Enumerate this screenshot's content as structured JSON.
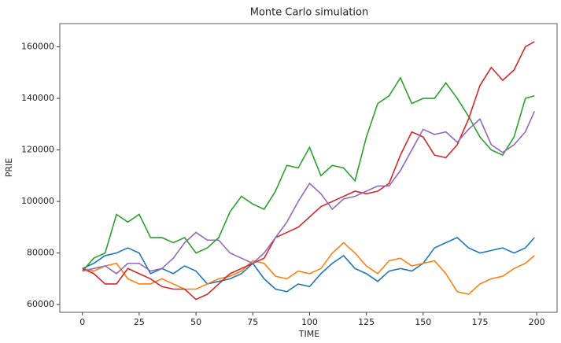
{
  "chart_data": {
    "type": "line",
    "title": "Monte Carlo simulation",
    "x_label": "TIME",
    "y_label": "PRIE",
    "x": [
      0,
      5,
      10,
      15,
      20,
      25,
      30,
      35,
      40,
      45,
      50,
      55,
      60,
      65,
      70,
      75,
      80,
      85,
      90,
      95,
      100,
      105,
      110,
      115,
      120,
      125,
      130,
      135,
      140,
      145,
      150,
      155,
      160,
      165,
      170,
      175,
      180,
      185,
      190,
      195,
      199
    ],
    "series": [
      {
        "color": "#1f77b4",
        "values": [
          74000,
          76000,
          79000,
          80000,
          82000,
          80000,
          72000,
          74000,
          72000,
          75000,
          73000,
          68000,
          69000,
          70000,
          72000,
          76000,
          70000,
          66000,
          65000,
          68000,
          67000,
          72000,
          76000,
          79000,
          74000,
          72000,
          69000,
          73000,
          74000,
          73000,
          76000,
          82000,
          84000,
          86000,
          82000,
          80000,
          81000,
          82000,
          80000,
          82000,
          86000
        ]
      },
      {
        "color": "#ff7f0e",
        "values": [
          74000,
          73000,
          75000,
          76000,
          70000,
          68000,
          68000,
          70000,
          68000,
          66000,
          66000,
          68000,
          70000,
          71000,
          73000,
          77000,
          76000,
          71000,
          70000,
          73000,
          72000,
          74000,
          80000,
          84000,
          80000,
          75000,
          72000,
          77000,
          78000,
          75000,
          76000,
          77000,
          72000,
          65000,
          64000,
          68000,
          70000,
          71000,
          74000,
          76000,
          79000
        ]
      },
      {
        "color": "#2ca02c",
        "values": [
          73000,
          78000,
          80000,
          95000,
          92000,
          95000,
          86000,
          86000,
          84000,
          86000,
          80000,
          82000,
          86000,
          96000,
          102000,
          99000,
          97000,
          104000,
          114000,
          113000,
          121000,
          110000,
          114000,
          113000,
          108000,
          125000,
          138000,
          141000,
          148000,
          138000,
          140000,
          140000,
          146000,
          140000,
          133000,
          125000,
          120000,
          118000,
          125000,
          140000,
          141000
        ]
      },
      {
        "color": "#d62728",
        "values": [
          74000,
          72000,
          68000,
          68000,
          74000,
          72000,
          70000,
          67000,
          66000,
          66000,
          62000,
          64000,
          68000,
          72000,
          74000,
          76000,
          78000,
          86000,
          88000,
          90000,
          94000,
          98000,
          100000,
          102000,
          104000,
          103000,
          104000,
          107000,
          118000,
          127000,
          125000,
          118000,
          117000,
          122000,
          132000,
          145000,
          152000,
          147000,
          151000,
          160000,
          162000
        ]
      },
      {
        "color": "#9467bd",
        "values": [
          73000,
          74000,
          75000,
          72000,
          76000,
          76000,
          73000,
          74000,
          78000,
          84000,
          88000,
          85000,
          85000,
          80000,
          78000,
          76000,
          80000,
          86000,
          92000,
          100000,
          107000,
          103000,
          97000,
          101000,
          102000,
          104000,
          106000,
          106000,
          112000,
          120000,
          128000,
          126000,
          127000,
          123000,
          128000,
          132000,
          122000,
          119000,
          122000,
          127000,
          135000
        ]
      }
    ],
    "xlim": [
      -9.95,
      208.95
    ],
    "ylim": [
      57000,
      169000
    ],
    "xticks": [
      0,
      25,
      50,
      75,
      100,
      125,
      150,
      175,
      200
    ],
    "yticks": [
      60000,
      80000,
      100000,
      120000,
      140000,
      160000
    ]
  }
}
